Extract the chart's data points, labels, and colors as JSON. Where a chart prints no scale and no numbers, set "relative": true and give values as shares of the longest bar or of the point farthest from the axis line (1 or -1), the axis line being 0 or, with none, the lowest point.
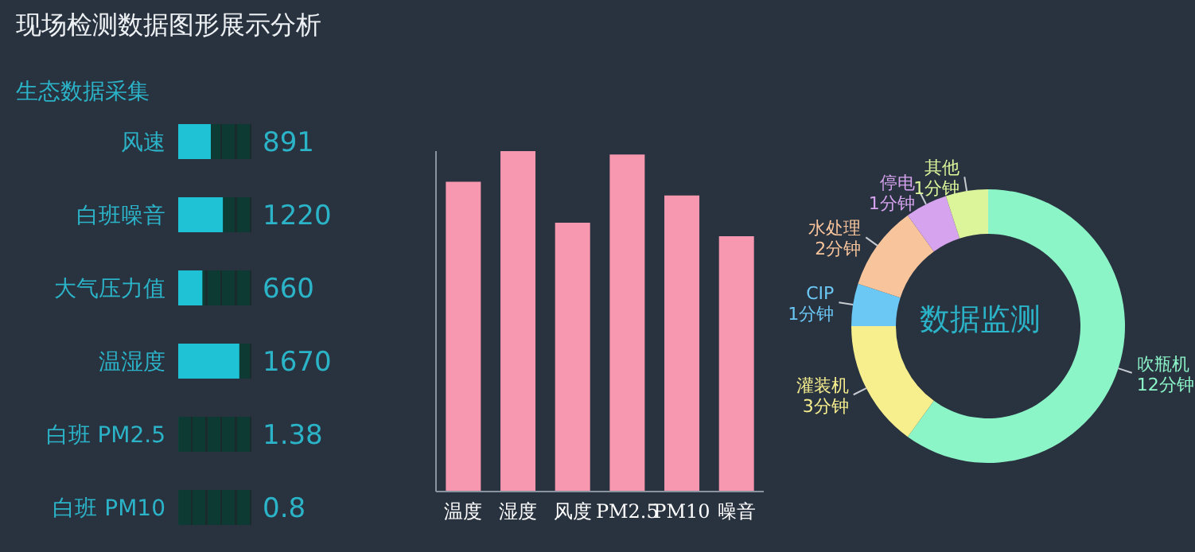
{
  "chart_data": [
    {
      "type": "bar",
      "orientation": "horizontal",
      "title": "现场检测数据图形展示分析",
      "subtitle": "生态数据采集",
      "categories": [
        "风速",
        "白班噪音",
        "大气压力值",
        "温湿度",
        "白班 PM2.5",
        "白班 PM10"
      ],
      "values": [
        891,
        1220,
        660,
        1670,
        1.38,
        0.8
      ],
      "color": "#1fc1d4",
      "xlim": [
        0,
        2000
      ],
      "data_labels": true,
      "tick_labels": "y"
    },
    {
      "type": "bar",
      "categories": [
        "温度",
        "湿度",
        "风度",
        "PM2.5",
        "PM10",
        "噪音"
      ],
      "values": [
        0.91,
        1,
        0.79,
        0.99,
        0.87,
        0.75
      ],
      "color": "#f797b0",
      "relative": true
    },
    {
      "type": "donut",
      "categories": [
        "吹瓶机",
        "灌装机",
        "CIP",
        "水处理",
        "停电",
        "其他"
      ],
      "values": [
        12,
        3,
        1,
        2,
        1,
        1
      ],
      "colors": [
        "#8cf5c8",
        "#f7ef8e",
        "#6bc8f5",
        "#f7c49c",
        "#d6a3ef",
        "#dcf59a"
      ],
      "value_labels": [
        "12分钟",
        "3分钟",
        "1分钟",
        "2分钟",
        "1分钟",
        "1分钟"
      ],
      "annotations": [
        "数据监测"
      ]
    }
  ]
}
